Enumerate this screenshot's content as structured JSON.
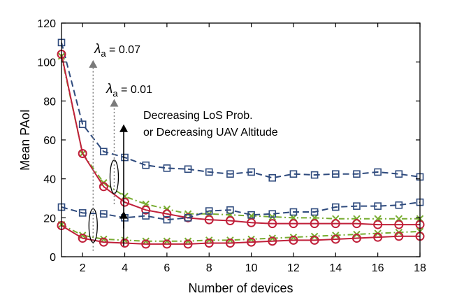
{
  "chart_data": {
    "type": "line",
    "title": "",
    "xlabel": "Number of devices",
    "ylabel": "Mean PAoI",
    "xlim": [
      1,
      18
    ],
    "ylim": [
      0,
      120
    ],
    "xticks": [
      2,
      4,
      6,
      8,
      10,
      12,
      14,
      16,
      18
    ],
    "yticks": [
      0,
      20,
      40,
      60,
      80,
      100,
      120
    ],
    "grid": false,
    "x": [
      1,
      2,
      3,
      4,
      5,
      6,
      7,
      8,
      9,
      10,
      11,
      12,
      13,
      14,
      15,
      16,
      17,
      18
    ],
    "series": [
      {
        "name": "square-dashed-0.07",
        "group": "lambda_0.07",
        "style": "dashed",
        "marker": "square",
        "color": "#2e4a7d",
        "values": [
          110,
          68,
          54,
          51,
          47,
          45.5,
          45,
          43.5,
          42.5,
          43.5,
          40.5,
          42.5,
          42,
          42.5,
          42.5,
          43.5,
          42.5,
          41
        ]
      },
      {
        "name": "cross-dashdot-0.07",
        "group": "lambda_0.07",
        "style": "dashdot",
        "marker": "cross",
        "color": "#77ac30",
        "values": [
          103,
          53,
          38,
          31,
          27,
          24.5,
          22,
          22,
          21.5,
          21,
          20.5,
          20,
          20,
          19.5,
          19.5,
          19.5,
          19.5,
          19.5
        ]
      },
      {
        "name": "circle-solid-0.07",
        "group": "lambda_0.07",
        "style": "solid",
        "marker": "circle",
        "color": "#c0203a",
        "values": [
          104,
          53,
          36,
          28,
          24,
          22,
          20,
          19,
          18.5,
          17.5,
          17,
          17,
          17,
          17,
          17,
          16.5,
          16.5,
          16.5
        ]
      },
      {
        "name": "square-dashed-0.01",
        "group": "lambda_0.01",
        "style": "dashed",
        "marker": "square",
        "color": "#2e4a7d",
        "values": [
          25.5,
          22.5,
          22,
          20,
          21,
          19,
          20,
          23.5,
          24,
          21.5,
          22,
          23,
          23,
          25.5,
          26,
          26,
          26.5,
          28
        ]
      },
      {
        "name": "cross-dashdot-0.01",
        "group": "lambda_0.01",
        "style": "dashdot",
        "marker": "cross",
        "color": "#77ac30",
        "values": [
          16.5,
          11,
          9,
          8.5,
          8,
          8,
          8,
          8.5,
          8.5,
          9,
          9.5,
          10,
          10.5,
          11,
          11.5,
          12,
          12.5,
          13
        ]
      },
      {
        "name": "circle-solid-0.01",
        "group": "lambda_0.01",
        "style": "solid",
        "marker": "circle",
        "color": "#c0203a",
        "values": [
          16,
          9.5,
          7.5,
          7,
          6.5,
          6.5,
          6.5,
          7,
          7,
          7.5,
          8,
          8.5,
          8.5,
          9,
          9.5,
          10,
          10.5,
          10.5
        ]
      }
    ],
    "annotations": {
      "lambda_high": {
        "symbol": "λ",
        "sub": "a",
        "rest": " = 0.07"
      },
      "lambda_low": {
        "symbol": "λ",
        "sub": "a",
        "rest": " = 0.01"
      },
      "trend_line1": "Decreasing LoS Prob.",
      "trend_line2": "or Decreasing UAV Altitude"
    }
  }
}
